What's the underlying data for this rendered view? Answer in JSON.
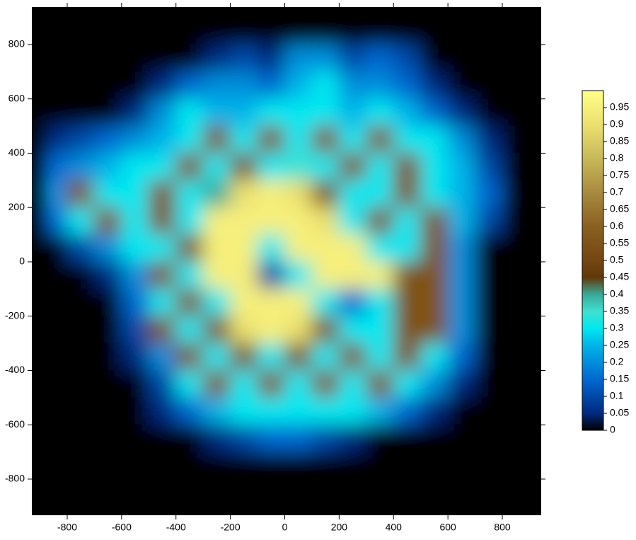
{
  "chart_data": {
    "type": "heatmap",
    "x": [
      -850,
      -750,
      -650,
      -550,
      -450,
      -350,
      -250,
      -150,
      -50,
      50,
      150,
      250,
      350,
      450,
      550,
      650,
      750,
      850
    ],
    "y": [
      850,
      750,
      650,
      550,
      450,
      350,
      250,
      150,
      50,
      -50,
      -150,
      -250,
      -350,
      -450,
      -550,
      -650,
      -750,
      -850
    ],
    "z": [
      [
        0,
        0,
        0,
        0,
        0,
        0,
        0,
        0,
        0,
        0,
        0,
        0,
        0,
        0,
        0,
        0,
        0,
        0
      ],
      [
        0,
        0,
        0,
        0,
        0,
        0,
        0.05,
        0.1,
        0.05,
        0.2,
        0.2,
        0.1,
        0.15,
        0.1,
        0,
        0,
        0,
        0
      ],
      [
        0,
        0,
        0,
        0,
        0.05,
        0.15,
        0.2,
        0.2,
        0.15,
        0.25,
        0.3,
        0.2,
        0.2,
        0.15,
        0.05,
        0,
        0,
        0
      ],
      [
        0,
        0,
        0,
        0.05,
        0.2,
        0.3,
        0.25,
        0.25,
        0.3,
        0.3,
        0.3,
        0.25,
        0.3,
        0.25,
        0.15,
        0.05,
        0,
        0
      ],
      [
        0.05,
        0.1,
        0.15,
        0.2,
        0.25,
        0.3,
        0.55,
        0.3,
        0.55,
        0.3,
        0.55,
        0.3,
        0.55,
        0.3,
        0.3,
        0.2,
        0.05,
        0
      ],
      [
        0.15,
        0.2,
        0.25,
        0.3,
        0.3,
        0.55,
        0.3,
        0.55,
        0.3,
        0.35,
        0.3,
        0.55,
        0.3,
        0.55,
        0.3,
        0.25,
        0.1,
        0
      ],
      [
        0.2,
        0.55,
        0.3,
        0.3,
        0.55,
        0.3,
        0.4,
        0.9,
        0.95,
        0.9,
        0.55,
        0.3,
        0.3,
        0.55,
        0.3,
        0.25,
        0.15,
        0
      ],
      [
        0.15,
        0.3,
        0.55,
        0.3,
        0.55,
        0.3,
        0.95,
        0.95,
        0.95,
        0.95,
        0.9,
        0.3,
        0.55,
        0.3,
        0.55,
        0.25,
        0.1,
        0
      ],
      [
        0,
        0.1,
        0.2,
        0.3,
        0.3,
        0.55,
        0.95,
        0.95,
        0.3,
        0.95,
        0.95,
        0.95,
        0.3,
        0.3,
        0.55,
        0.2,
        0,
        0
      ],
      [
        0,
        0,
        0.05,
        0.2,
        0.55,
        0.3,
        0.95,
        0.95,
        0.1,
        0.3,
        0.95,
        0.95,
        0.95,
        0.55,
        0.55,
        0.2,
        0,
        0
      ],
      [
        0,
        0,
        0,
        0.15,
        0.3,
        0.55,
        0.3,
        0.95,
        0.95,
        0.95,
        0.3,
        0.15,
        0.3,
        0.55,
        0.55,
        0.2,
        0,
        0
      ],
      [
        0,
        0,
        0,
        0.1,
        0.55,
        0.3,
        0.55,
        0.9,
        0.95,
        0.9,
        0.55,
        0.3,
        0.3,
        0.55,
        0.55,
        0.2,
        0,
        0
      ],
      [
        0,
        0,
        0,
        0.05,
        0.2,
        0.55,
        0.3,
        0.55,
        0.3,
        0.55,
        0.3,
        0.55,
        0.3,
        0.55,
        0.3,
        0.15,
        0,
        0
      ],
      [
        0,
        0,
        0,
        0,
        0.1,
        0.3,
        0.55,
        0.3,
        0.55,
        0.3,
        0.55,
        0.3,
        0.55,
        0.3,
        0.2,
        0.05,
        0,
        0
      ],
      [
        0,
        0,
        0,
        0,
        0.05,
        0.15,
        0.25,
        0.3,
        0.3,
        0.3,
        0.3,
        0.3,
        0.25,
        0.15,
        0.05,
        0,
        0,
        0
      ],
      [
        0,
        0,
        0,
        0,
        0,
        0,
        0.05,
        0.1,
        0.15,
        0.15,
        0.1,
        0.05,
        0,
        0,
        0,
        0,
        0,
        0
      ],
      [
        0,
        0,
        0,
        0,
        0,
        0,
        0,
        0,
        0,
        0,
        0,
        0,
        0,
        0,
        0,
        0,
        0,
        0
      ],
      [
        0,
        0,
        0,
        0,
        0,
        0,
        0,
        0,
        0,
        0,
        0,
        0,
        0,
        0,
        0,
        0,
        0,
        0
      ]
    ],
    "xlim": [
      -930,
      943
    ],
    "ylim": [
      -933,
      938
    ],
    "xticks": [
      -800,
      -600,
      -400,
      -200,
      0,
      200,
      400,
      600,
      800
    ],
    "yticks": [
      -800,
      -600,
      -400,
      -200,
      0,
      200,
      400,
      600,
      800
    ],
    "clim": [
      0,
      1
    ],
    "cticks": [
      0,
      0.05,
      0.1,
      0.15,
      0.2,
      0.25,
      0.3,
      0.35,
      0.4,
      0.45,
      0.5,
      0.55,
      0.6,
      0.65,
      0.7,
      0.75,
      0.8,
      0.85,
      0.9,
      0.95
    ],
    "colorscale": [
      [
        0,
        "#000000"
      ],
      [
        0.05,
        "#002a80"
      ],
      [
        0.15,
        "#0068d0"
      ],
      [
        0.25,
        "#00b4e8"
      ],
      [
        0.3,
        "#00e8f0"
      ],
      [
        0.35,
        "#40e0d0"
      ],
      [
        0.4,
        "#3aa898"
      ],
      [
        0.45,
        "#603808"
      ],
      [
        0.5,
        "#744612"
      ],
      [
        0.6,
        "#8a6020"
      ],
      [
        0.7,
        "#a88a40"
      ],
      [
        0.8,
        "#c8b858"
      ],
      [
        0.9,
        "#ece070"
      ],
      [
        1,
        "#ffff88"
      ]
    ]
  }
}
